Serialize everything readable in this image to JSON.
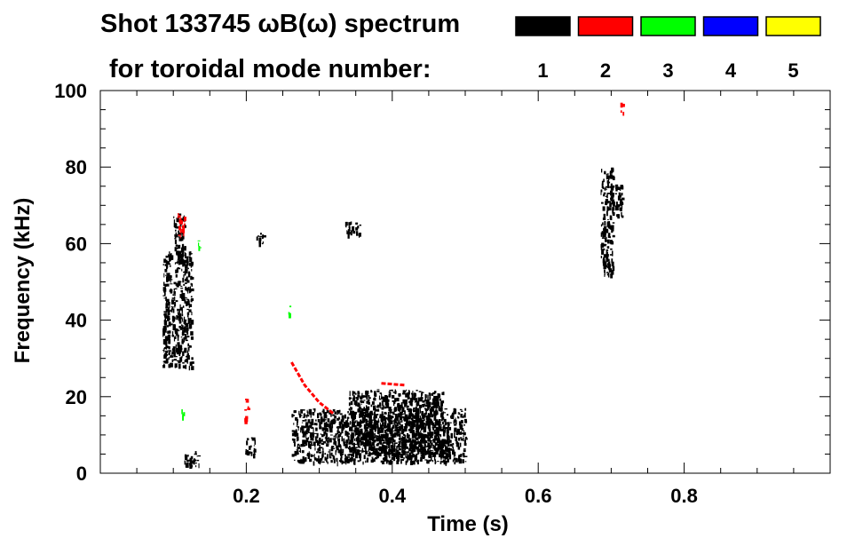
{
  "chart_data": {
    "type": "heatmap",
    "title_line1": "Shot 133745 ωB(ω) spectrum",
    "title_line2": "for toroidal mode number:",
    "xlabel": "Time (s)",
    "ylabel": "Frequency (kHz)",
    "xlim": [
      0.0,
      1.0
    ],
    "ylim": [
      0,
      100
    ],
    "xticks": [
      {
        "value": 0.2,
        "label": "0.2"
      },
      {
        "value": 0.4,
        "label": "0.4"
      },
      {
        "value": 0.6,
        "label": "0.6"
      },
      {
        "value": 0.8,
        "label": "0.8"
      }
    ],
    "yticks": [
      {
        "value": 0,
        "label": "0"
      },
      {
        "value": 20,
        "label": "20"
      },
      {
        "value": 40,
        "label": "40"
      },
      {
        "value": 60,
        "label": "60"
      },
      {
        "value": 80,
        "label": "80"
      },
      {
        "value": 100,
        "label": "100"
      }
    ],
    "legend_placement": "top-right",
    "legend": [
      {
        "label": "1",
        "color": "#000000"
      },
      {
        "label": "2",
        "color": "#ff0000"
      },
      {
        "label": "3",
        "color": "#00ff00"
      },
      {
        "label": "4",
        "color": "#0000ff"
      },
      {
        "label": "5",
        "color": "#ffff00"
      }
    ],
    "regions": [
      {
        "mode": "1",
        "t": [
          0.085,
          0.125
        ],
        "f": [
          28,
          58
        ]
      },
      {
        "mode": "1",
        "t": [
          0.1,
          0.115
        ],
        "f": [
          55,
          68
        ]
      },
      {
        "mode": "1",
        "t": [
          0.115,
          0.135
        ],
        "f": [
          2,
          6
        ]
      },
      {
        "mode": "1",
        "t": [
          0.198,
          0.212
        ],
        "f": [
          5,
          10
        ]
      },
      {
        "mode": "1",
        "t": [
          0.262,
          0.5
        ],
        "f": [
          3,
          17
        ]
      },
      {
        "mode": "1",
        "t": [
          0.34,
          0.47
        ],
        "f": [
          5,
          22
        ]
      },
      {
        "mode": "1",
        "t": [
          0.335,
          0.355
        ],
        "f": [
          62,
          66
        ]
      },
      {
        "mode": "1",
        "t": [
          0.213,
          0.225
        ],
        "f": [
          60,
          63
        ]
      },
      {
        "mode": "1",
        "t": [
          0.685,
          0.702
        ],
        "f": [
          52,
          80
        ]
      },
      {
        "mode": "1",
        "t": [
          0.705,
          0.715
        ],
        "f": [
          67,
          76
        ]
      },
      {
        "mode": "2",
        "t": [
          0.26,
          0.32
        ],
        "f": [
          16,
          30
        ],
        "path": [
          [
            0.262,
            29
          ],
          [
            0.28,
            23
          ],
          [
            0.3,
            18.5
          ],
          [
            0.32,
            15.5
          ]
        ]
      },
      {
        "mode": "2",
        "t": [
          0.38,
          0.42
        ],
        "f": [
          22,
          24
        ],
        "path": [
          [
            0.385,
            23.5
          ],
          [
            0.418,
            23
          ]
        ]
      },
      {
        "mode": "2",
        "t": [
          0.105,
          0.115
        ],
        "f": [
          62,
          68
        ]
      },
      {
        "mode": "2",
        "t": [
          0.197,
          0.202
        ],
        "f": [
          14,
          20
        ]
      },
      {
        "mode": "2",
        "t": [
          0.712,
          0.716
        ],
        "f": [
          94,
          97
        ]
      },
      {
        "mode": "3",
        "t": [
          0.256,
          0.26
        ],
        "f": [
          40,
          44
        ]
      },
      {
        "mode": "3",
        "t": [
          0.133,
          0.137
        ],
        "f": [
          59,
          62
        ]
      },
      {
        "mode": "3",
        "t": [
          0.111,
          0.114
        ],
        "f": [
          15,
          17
        ]
      }
    ]
  }
}
